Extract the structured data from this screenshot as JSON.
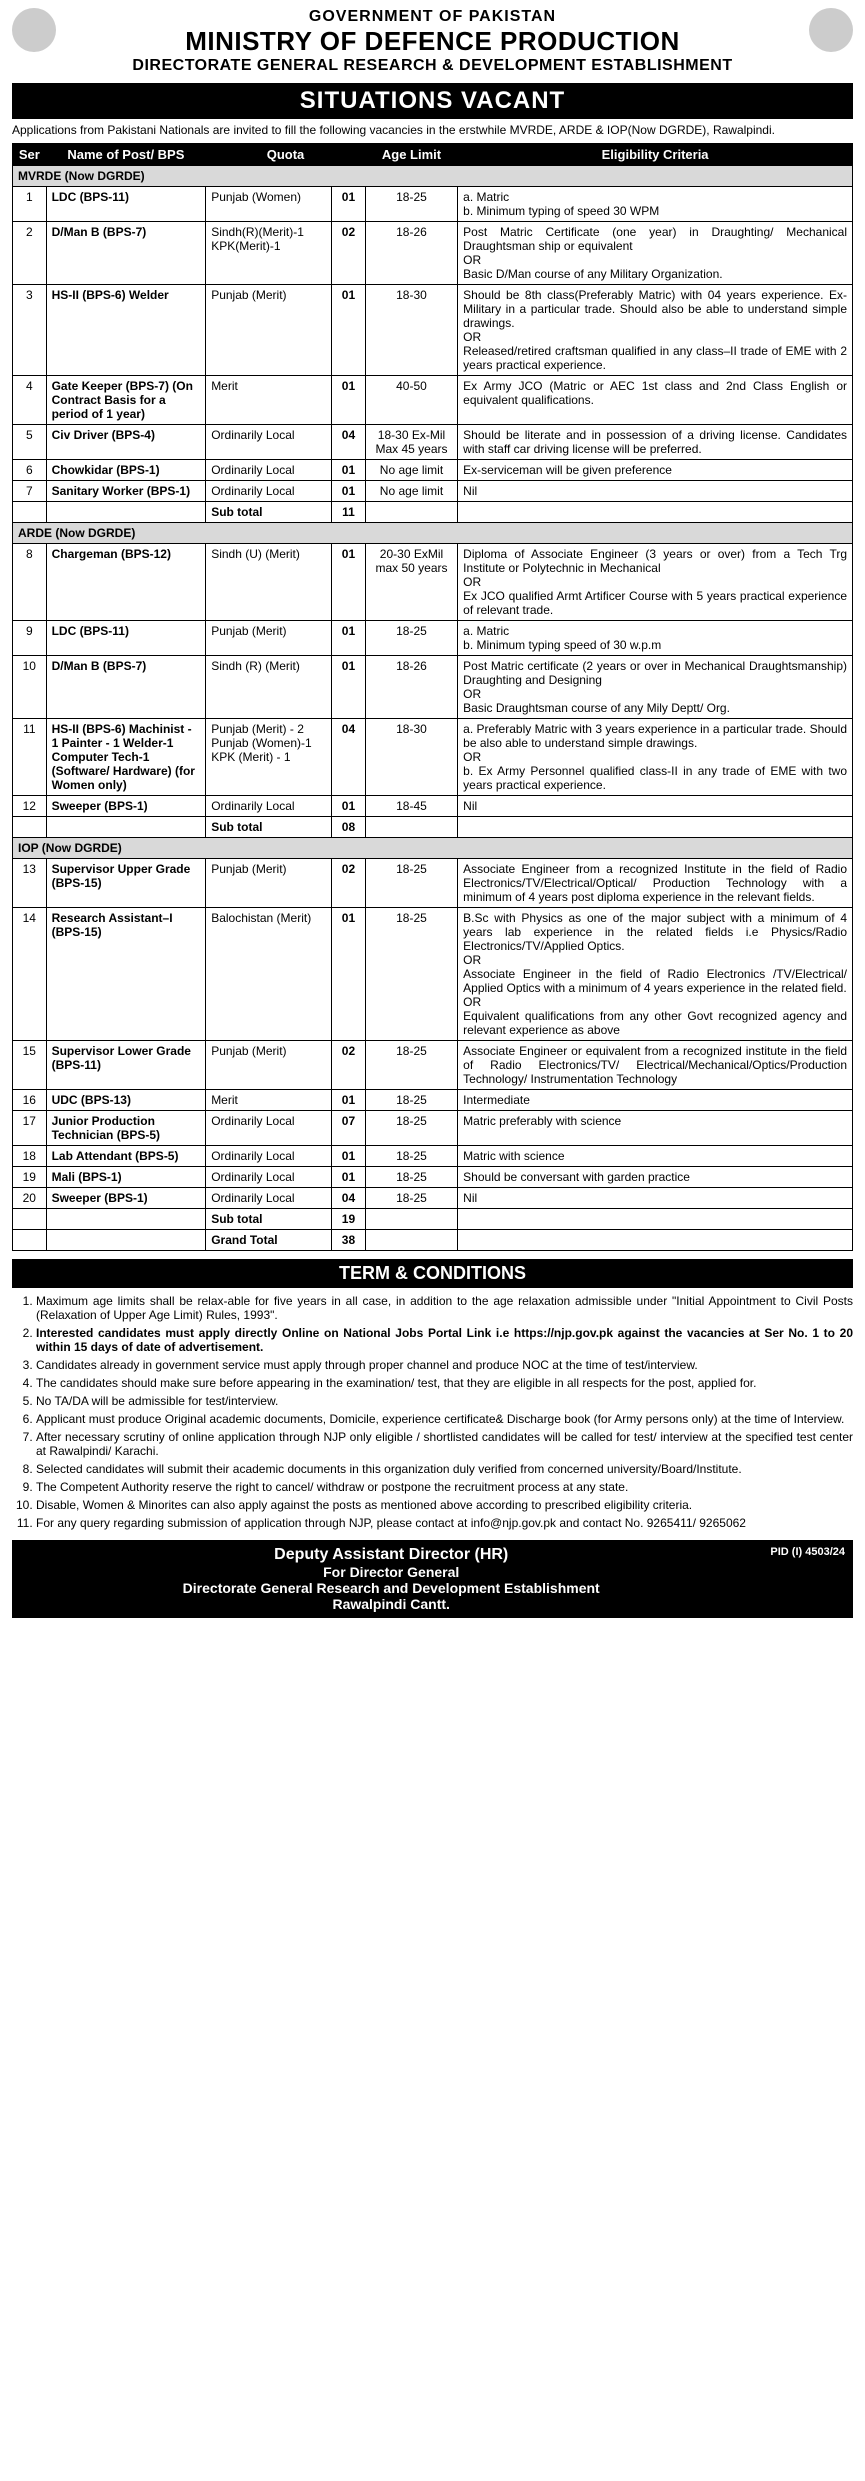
{
  "header": {
    "gov": "GOVERNMENT OF PAKISTAN",
    "ministry": "MINISTRY OF DEFENCE PRODUCTION",
    "directorate": "DIRECTORATE GENERAL RESEARCH & DEVELOPMENT ESTABLISHMENT",
    "title": "SITUATIONS VACANT"
  },
  "intro": "Applications from Pakistani Nationals are invited to fill the following vacancies in the erstwhile MVRDE, ARDE & IOP(Now DGRDE), Rawalpindi.",
  "columns": {
    "ser": "Ser",
    "post": "Name of Post/ BPS",
    "quota": "Quota",
    "count": "",
    "age": "Age Limit",
    "criteria": "Eligibility Criteria"
  },
  "sections": [
    {
      "name": "MVRDE (Now DGRDE)",
      "subtotal": "11",
      "rows": [
        {
          "ser": "1",
          "post": "LDC (BPS-11)",
          "quota": "Punjab (Women)",
          "count": "01",
          "age": "18-25",
          "criteria": "a. Matric\nb. Minimum typing of speed 30 WPM"
        },
        {
          "ser": "2",
          "post": "D/Man B (BPS-7)",
          "quota": "Sindh(R)(Merit)-1\nKPK(Merit)-1",
          "count": "02",
          "age": "18-26",
          "criteria": "Post Matric Certificate (one year) in Draughting/ Mechanical Draughtsman ship or equivalent\nOR\nBasic D/Man course of any Military Organization."
        },
        {
          "ser": "3",
          "post": "HS-II (BPS-6) Welder",
          "quota": "Punjab (Merit)",
          "count": "01",
          "age": "18-30",
          "criteria": "Should be 8th class(Preferably Matric) with 04 years experience. Ex-Military in a particular trade. Should also be able to understand simple drawings.\nOR\nReleased/retired craftsman qualified in any class–II trade of EME with 2 years practical experience."
        },
        {
          "ser": "4",
          "post": "Gate Keeper (BPS-7) (On Contract Basis for a period of 1 year)",
          "quota": "Merit",
          "count": "01",
          "age": "40-50",
          "criteria": "Ex Army JCO (Matric or AEC 1st class and 2nd Class English or equivalent qualifications."
        },
        {
          "ser": "5",
          "post": "Civ Driver (BPS-4)",
          "quota": "Ordinarily Local",
          "count": "04",
          "age": "18-30 Ex-Mil Max 45 years",
          "criteria": "Should be literate and in possession of a driving license. Candidates with staff car driving license will be preferred."
        },
        {
          "ser": "6",
          "post": "Chowkidar (BPS-1)",
          "quota": "Ordinarily Local",
          "count": "01",
          "age": "No age limit",
          "criteria": "Ex-serviceman will be given preference"
        },
        {
          "ser": "7",
          "post": "Sanitary Worker (BPS-1)",
          "quota": "Ordinarily Local",
          "count": "01",
          "age": "No age limit",
          "criteria": "Nil"
        }
      ]
    },
    {
      "name": "ARDE (Now DGRDE)",
      "subtotal": "08",
      "rows": [
        {
          "ser": "8",
          "post": "Chargeman (BPS-12)",
          "quota": "Sindh (U) (Merit)",
          "count": "01",
          "age": "20-30 ExMil max 50 years",
          "criteria": "Diploma of Associate Engineer (3 years or over) from a Tech Trg Institute or Polytechnic in Mechanical\nOR\nEx JCO qualified Armt Artificer Course with 5 years practical experience of relevant trade."
        },
        {
          "ser": "9",
          "post": "LDC (BPS-11)",
          "quota": "Punjab (Merit)",
          "count": "01",
          "age": "18-25",
          "criteria": "a. Matric\nb. Minimum typing speed of 30 w.p.m"
        },
        {
          "ser": "10",
          "post": "D/Man B (BPS-7)",
          "quota": "Sindh (R) (Merit)",
          "count": "01",
          "age": "18-26",
          "criteria": "Post Matric certificate (2 years or over in Mechanical Draughtsmanship) Draughting and Designing\nOR\nBasic Draughtsman course of any Mily Deptt/ Org."
        },
        {
          "ser": "11",
          "post": "HS-II (BPS-6) Machinist - 1 Painter - 1 Welder-1 Computer Tech-1 (Software/ Hardware) (for Women only)",
          "quota": "Punjab (Merit) - 2\nPunjab (Women)-1\nKPK (Merit) - 1",
          "count": "04",
          "age": "18-30",
          "criteria": "a. Preferably Matric with 3 years experience in a particular trade. Should be also able to understand simple drawings.\nOR\nb. Ex Army Personnel qualified class-II in any trade of EME with two years practical experience."
        },
        {
          "ser": "12",
          "post": "Sweeper (BPS-1)",
          "quota": "Ordinarily Local",
          "count": "01",
          "age": "18-45",
          "criteria": "Nil"
        }
      ]
    },
    {
      "name": "IOP (Now DGRDE)",
      "subtotal": "19",
      "rows": [
        {
          "ser": "13",
          "post": "Supervisor Upper Grade (BPS-15)",
          "quota": "Punjab (Merit)",
          "count": "02",
          "age": "18-25",
          "criteria": "Associate Engineer from a recognized Institute in the field of Radio Electronics/TV/Electrical/Optical/ Production Technology with a minimum of 4 years post diploma experience in the relevant fields."
        },
        {
          "ser": "14",
          "post": "Research Assistant–I (BPS-15)",
          "quota": "Balochistan (Merit)",
          "count": "01",
          "age": "18-25",
          "criteria": "B.Sc with Physics as one of the major subject with a minimum of 4 years lab experience in the related fields i.e Physics/Radio Electronics/TV/Applied Optics.\nOR\nAssociate Engineer in the field of Radio Electronics /TV/Electrical/ Applied Optics with a minimum of 4 years experience in the related field.\nOR\nEquivalent qualifications from any other Govt recognized agency and relevant experience as above"
        },
        {
          "ser": "15",
          "post": "Supervisor Lower Grade (BPS-11)",
          "quota": "Punjab (Merit)",
          "count": "02",
          "age": "18-25",
          "criteria": "Associate Engineer or equivalent from a recognized institute in the field of Radio Electronics/TV/ Electrical/Mechanical/Optics/Production Technology/ Instrumentation Technology"
        },
        {
          "ser": "16",
          "post": "UDC (BPS-13)",
          "quota": "Merit",
          "count": "01",
          "age": "18-25",
          "criteria": "Intermediate"
        },
        {
          "ser": "17",
          "post": "Junior Production Technician (BPS-5)",
          "quota": "Ordinarily Local",
          "count": "07",
          "age": "18-25",
          "criteria": "Matric preferably with science"
        },
        {
          "ser": "18",
          "post": "Lab Attendant (BPS-5)",
          "quota": "Ordinarily Local",
          "count": "01",
          "age": "18-25",
          "criteria": "Matric with science"
        },
        {
          "ser": "19",
          "post": "Mali (BPS-1)",
          "quota": "Ordinarily Local",
          "count": "01",
          "age": "18-25",
          "criteria": "Should be conversant with garden practice"
        },
        {
          "ser": "20",
          "post": "Sweeper (BPS-1)",
          "quota": "Ordinarily Local",
          "count": "04",
          "age": "18-25",
          "criteria": "Nil"
        }
      ]
    }
  ],
  "subtotal_label": "Sub total",
  "grandtotal_label": "Grand Total",
  "grandtotal": "38",
  "terms_title": "TERM & CONDITIONS",
  "terms": [
    "Maximum age limits shall be relax-able for five years in all case, in addition to the age relaxation admissible under \"Initial Appointment to Civil Posts (Relaxation of Upper Age Limit) Rules, 1993\".",
    "Interested candidates must apply directly Online on National Jobs Portal Link i.e https://njp.gov.pk against the vacancies at Ser No. 1 to 20 within 15 days of date of advertisement.",
    "Candidates already in government service must apply through proper channel and produce NOC at the time of test/interview.",
    "The candidates should make sure before appearing in the examination/ test, that they are eligible in all respects for the post, applied for.",
    "No TA/DA will be admissible for test/interview.",
    "Applicant must produce Original academic documents, Domicile, experience certificate& Discharge book (for Army persons only) at the time of Interview.",
    "After necessary scrutiny of online application through NJP only eligible / shortlisted candidates will be called for test/ interview at the specified test center at Rawalpindi/ Karachi.",
    "Selected candidates will submit their academic documents in this organization duly verified from concerned university/Board/Institute.",
    "The Competent Authority reserve the right to cancel/ withdraw or postpone the recruitment process at any state.",
    "Disable, Women & Minorites can also apply against the posts as mentioned above according to prescribed eligibility criteria.",
    "For any query regarding submission of application through NJP, please contact at info@njp.gov.pk and contact No. 9265411/ 9265062"
  ],
  "footer": {
    "line1": "Deputy Assistant Director (HR)",
    "line2": "For Director General",
    "line3": "Directorate General Research and Development Establishment",
    "line4": "Rawalpindi Cantt.",
    "pid": "PID (I) 4503/24"
  }
}
